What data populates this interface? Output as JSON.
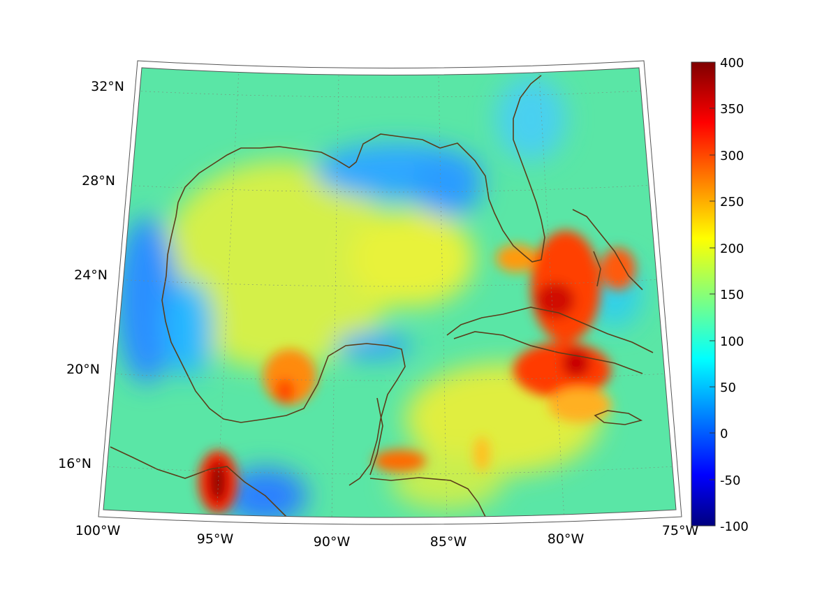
{
  "map": {
    "projection": "conic",
    "lat_ticks": [
      "32°N",
      "28°N",
      "24°N",
      "20°N",
      "16°N"
    ],
    "lon_ticks": [
      "100°W",
      "95°W",
      "90°W",
      "85°W",
      "80°W",
      "75°W"
    ],
    "coastline_color": "#5a3d1a",
    "background_color": "#4fe0a0",
    "regions": [
      {
        "name": "gulf-central",
        "level": 175
      },
      {
        "name": "gulf-north-low",
        "level": 60
      },
      {
        "name": "bay-of-campeche-high",
        "level": 280
      },
      {
        "name": "tehuantepec-peak",
        "level": 400
      },
      {
        "name": "cuba-bahamas-high",
        "level": 330
      },
      {
        "name": "honduras-coast-high",
        "level": 270
      },
      {
        "name": "mexico-west-low",
        "level": 50
      },
      {
        "name": "atlantic-east",
        "level": 110
      }
    ]
  },
  "colorbar": {
    "min": -100,
    "max": 400,
    "labels": [
      "400",
      "350",
      "300",
      "250",
      "200",
      "150",
      "100",
      "50",
      "0",
      "-50",
      "-100"
    ],
    "colormap": "jet"
  }
}
